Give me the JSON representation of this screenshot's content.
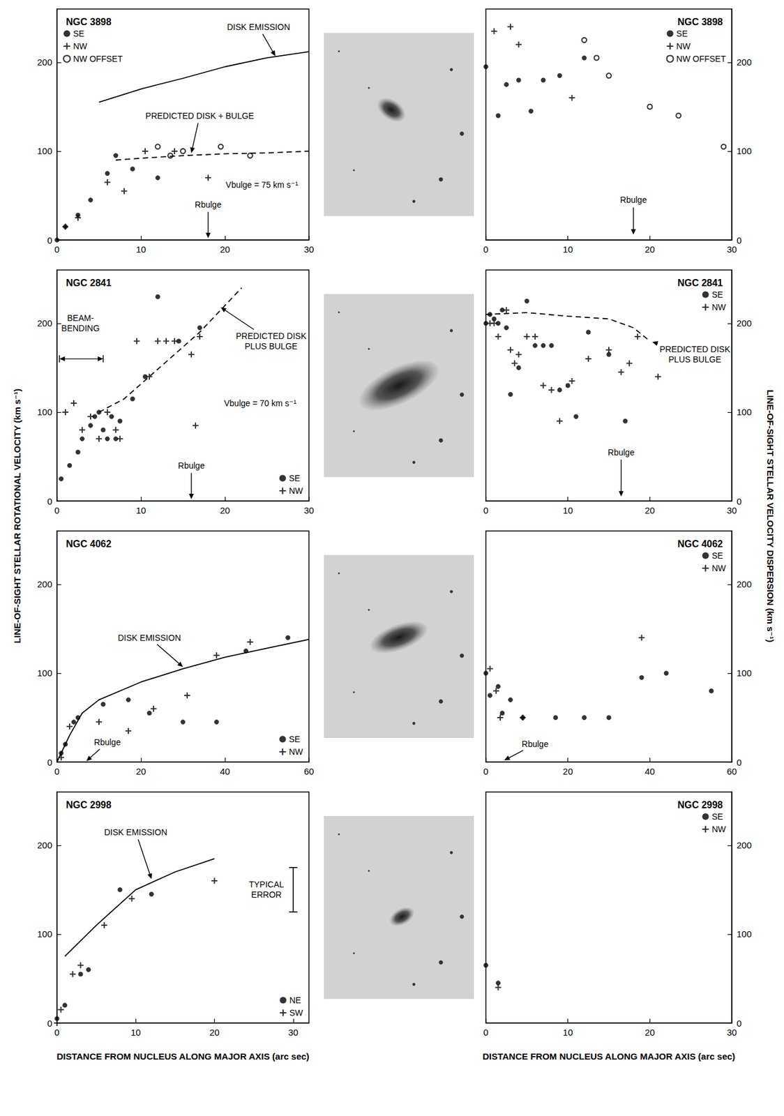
{
  "chart_data": [
    {
      "type": "scatter",
      "title": "NGC 3898",
      "xlim": [
        0,
        30
      ],
      "xticks": [
        0,
        10,
        20,
        30
      ],
      "ylim": [
        0,
        260
      ],
      "yticks": [
        0,
        100,
        200
      ],
      "grid": false,
      "legend": "upper left",
      "series": [
        {
          "name": "SE",
          "type": "scatter",
          "marker": "circle",
          "color": "#000000",
          "x": [
            0,
            1,
            2.5,
            4,
            6,
            7,
            9,
            12
          ],
          "values": [
            0,
            15,
            28,
            45,
            75,
            95,
            80,
            70
          ]
        },
        {
          "name": "NW",
          "type": "scatter",
          "marker": "plus",
          "color": "#000000",
          "x": [
            1,
            2.5,
            6,
            8,
            10.5,
            14,
            18
          ],
          "values": [
            15,
            25,
            65,
            55,
            100,
            100,
            70
          ]
        },
        {
          "name": "NW OFFSET",
          "type": "scatter",
          "marker": "open_circle",
          "color": "#000000",
          "x": [
            12,
            13.5,
            15,
            19.5,
            23
          ],
          "values": [
            105,
            95,
            100,
            105,
            95
          ]
        },
        {
          "type": "line",
          "line_style": "solid",
          "color": "#000000",
          "x": [
            5,
            10,
            15,
            20,
            25,
            30
          ],
          "values": [
            155,
            170,
            182,
            195,
            205,
            212
          ]
        },
        {
          "type": "line",
          "line_style": "dashed",
          "color": "#000000",
          "x": [
            7,
            10,
            15,
            20,
            25,
            30
          ],
          "values": [
            90,
            92,
            95,
            97,
            98,
            100
          ]
        }
      ],
      "annotations": [
        {
          "text": "DISK EMISSION",
          "x": 24,
          "y": 240,
          "point": [
            26,
            207
          ]
        },
        {
          "text": "PREDICTED DISK + BULGE",
          "x": 17,
          "y": 140,
          "point": [
            16,
            98
          ]
        },
        {
          "text": "Vbulge = 75 km s⁻¹",
          "x": 24.4,
          "y": 62
        },
        {
          "text": "Rbulge",
          "x": 18,
          "y": 40,
          "point": [
            18,
            2
          ]
        }
      ]
    },
    {
      "type": "scatter",
      "title": "NGC 3898",
      "xlim": [
        0,
        30
      ],
      "xticks": [
        0,
        10,
        20,
        30
      ],
      "ylim": [
        0,
        260
      ],
      "yticks": [
        0,
        100,
        200
      ],
      "grid": false,
      "legend": "upper right",
      "series": [
        {
          "name": "SE",
          "type": "scatter",
          "marker": "circle",
          "color": "#000000",
          "x": [
            0,
            1.5,
            2.5,
            4,
            5.5,
            7,
            9,
            12
          ],
          "values": [
            195,
            140,
            175,
            180,
            145,
            180,
            185,
            205
          ]
        },
        {
          "name": "NW",
          "type": "scatter",
          "marker": "plus",
          "color": "#000000",
          "x": [
            1,
            3,
            4,
            10.5
          ],
          "values": [
            235,
            240,
            220,
            160
          ]
        },
        {
          "name": "NW OFFSET",
          "type": "scatter",
          "marker": "open_circle",
          "color": "#000000",
          "x": [
            12,
            13.5,
            15,
            20,
            23.5,
            29
          ],
          "values": [
            225,
            205,
            185,
            150,
            140,
            105
          ]
        }
      ],
      "annotations": [
        {
          "text": "Rbulge",
          "x": 18,
          "y": 45,
          "point": [
            18,
            6
          ]
        }
      ]
    },
    {
      "type": "scatter",
      "title": "NGC 2841",
      "xlim": [
        0,
        30
      ],
      "xticks": [
        0,
        10,
        20,
        30
      ],
      "ylim": [
        0,
        260
      ],
      "yticks": [
        0,
        100,
        200
      ],
      "grid": false,
      "legend": "lower right",
      "series": [
        {
          "name": "SE",
          "type": "scatter",
          "marker": "circle",
          "color": "#000000",
          "x": [
            0.5,
            1.5,
            2.5,
            3,
            4,
            4.5,
            5,
            5.5,
            6,
            6.5,
            7,
            7.5,
            9,
            10.5,
            12,
            14.5,
            17
          ],
          "values": [
            25,
            40,
            55,
            70,
            85,
            95,
            100,
            80,
            70,
            95,
            70,
            90,
            115,
            140,
            230,
            180,
            195
          ]
        },
        {
          "name": "NW",
          "type": "scatter",
          "marker": "plus",
          "color": "#000000",
          "x": [
            1,
            2,
            3,
            4,
            5,
            6,
            7,
            7.5,
            9.5,
            11,
            12,
            13,
            14,
            16,
            16.5,
            17
          ],
          "values": [
            100,
            110,
            80,
            95,
            70,
            100,
            80,
            70,
            180,
            140,
            180,
            180,
            180,
            165,
            85,
            185
          ]
        },
        {
          "type": "line",
          "line_style": "dashed",
          "color": "#000000",
          "x": [
            5,
            8,
            11,
            14,
            17,
            20,
            22
          ],
          "values": [
            100,
            115,
            140,
            165,
            190,
            220,
            240
          ]
        }
      ],
      "annotations": [
        {
          "text": "BEAM-\nBENDING",
          "x": 2.8,
          "y": 200,
          "span": {
            "from": 0.3,
            "to": 5.5,
            "y": 160
          }
        },
        {
          "text": "PREDICTED DISK\nPLUS BULGE",
          "x": 25.5,
          "y": 180,
          "point": [
            19.5,
            218
          ]
        },
        {
          "text": "Vbulge = 70 km s⁻¹",
          "x": 24.2,
          "y": 110
        },
        {
          "text": "Rbulge",
          "x": 16,
          "y": 40,
          "point": [
            16,
            2
          ]
        }
      ]
    },
    {
      "type": "scatter",
      "title": "NGC 2841",
      "xlim": [
        0,
        30
      ],
      "xticks": [
        0,
        10,
        20,
        30
      ],
      "ylim": [
        0,
        260
      ],
      "yticks": [
        0,
        100,
        200
      ],
      "grid": false,
      "legend": "upper right",
      "series": [
        {
          "name": "SE",
          "type": "scatter",
          "marker": "circle",
          "color": "#000000",
          "x": [
            0,
            0.5,
            1,
            1.5,
            2,
            2.5,
            3,
            4,
            5,
            6,
            7,
            8,
            9,
            10,
            11,
            12.5,
            15,
            17
          ],
          "values": [
            200,
            210,
            205,
            200,
            215,
            195,
            120,
            150,
            225,
            175,
            175,
            175,
            125,
            130,
            95,
            190,
            165,
            90
          ]
        },
        {
          "name": "NW",
          "type": "scatter",
          "marker": "plus",
          "color": "#000000",
          "x": [
            0.5,
            1,
            1.5,
            2.5,
            3,
            3.5,
            4,
            5,
            6,
            7,
            8,
            9,
            10.5,
            12.5,
            15,
            16.5,
            17.5,
            18.5,
            21
          ],
          "values": [
            200,
            200,
            185,
            215,
            170,
            155,
            165,
            185,
            185,
            130,
            125,
            90,
            135,
            160,
            170,
            145,
            155,
            185,
            140
          ]
        },
        {
          "type": "line",
          "line_style": "dashed",
          "color": "#000000",
          "x": [
            0,
            5,
            10,
            15,
            18,
            20
          ],
          "values": [
            210,
            212,
            208,
            205,
            195,
            180
          ]
        }
      ],
      "annotations": [
        {
          "text": "PREDICTED DISK\nPLUS BULGE",
          "x": 25.5,
          "y": 165,
          "point": [
            20.3,
            179
          ]
        },
        {
          "text": "Rbulge",
          "x": 16.5,
          "y": 55,
          "point": [
            16.5,
            5
          ]
        }
      ]
    },
    {
      "type": "scatter",
      "title": "NGC 4062",
      "xlim": [
        0,
        60
      ],
      "xticks": [
        0,
        20,
        40,
        60
      ],
      "ylim": [
        0,
        260
      ],
      "yticks": [
        0,
        100,
        200
      ],
      "grid": false,
      "legend": "lower right",
      "series": [
        {
          "name": "SE",
          "type": "scatter",
          "marker": "circle",
          "color": "#000000",
          "x": [
            1,
            2,
            4,
            5,
            11,
            17,
            22,
            30,
            38,
            45,
            55
          ],
          "values": [
            10,
            20,
            45,
            50,
            65,
            70,
            55,
            45,
            45,
            125,
            140
          ]
        },
        {
          "name": "NW",
          "type": "scatter",
          "marker": "plus",
          "color": "#000000",
          "x": [
            1,
            3,
            10,
            17,
            23,
            31,
            38,
            46
          ],
          "values": [
            5,
            40,
            45,
            35,
            60,
            75,
            120,
            135
          ]
        },
        {
          "type": "line",
          "line_style": "solid",
          "color": "#000000",
          "x": [
            0,
            3,
            6,
            10,
            20,
            30,
            40,
            50,
            60
          ],
          "values": [
            0,
            30,
            55,
            70,
            90,
            105,
            118,
            128,
            138
          ]
        }
      ],
      "annotations": [
        {
          "text": "DISK EMISSION",
          "x": 22,
          "y": 140,
          "point": [
            30,
            107
          ]
        },
        {
          "text": "Rbulge",
          "x": 12,
          "y": 22,
          "point": [
            7,
            1
          ]
        }
      ]
    },
    {
      "type": "scatter",
      "title": "NGC 4062",
      "xlim": [
        0,
        60
      ],
      "xticks": [
        0,
        20,
        40,
        60
      ],
      "ylim": [
        0,
        260
      ],
      "yticks": [
        0,
        100,
        200
      ],
      "grid": false,
      "legend": "upper right",
      "series": [
        {
          "name": "SE",
          "type": "scatter",
          "marker": "circle",
          "color": "#000000",
          "x": [
            0,
            1,
            3,
            4,
            6,
            9,
            17,
            24,
            30,
            38,
            44,
            55
          ],
          "values": [
            100,
            75,
            85,
            55,
            70,
            50,
            50,
            50,
            50,
            95,
            100,
            80
          ]
        },
        {
          "name": "NW",
          "type": "scatter",
          "marker": "plus",
          "color": "#000000",
          "x": [
            1,
            2.5,
            3.5,
            9,
            38
          ],
          "values": [
            105,
            80,
            50,
            50,
            140
          ]
        }
      ],
      "annotations": [
        {
          "text": "Rbulge",
          "x": 12,
          "y": 20,
          "point": [
            4.5,
            2
          ]
        }
      ]
    },
    {
      "type": "scatter",
      "title": "NGC 2998",
      "xlim": [
        0,
        32
      ],
      "xticks": [
        0,
        10,
        20,
        30
      ],
      "ylim": [
        0,
        260
      ],
      "yticks": [
        0,
        100,
        200
      ],
      "grid": false,
      "legend": "lower right",
      "series": [
        {
          "name": "NE",
          "type": "scatter",
          "marker": "circle",
          "color": "#000000",
          "x": [
            0,
            1,
            3,
            4,
            8,
            12
          ],
          "values": [
            5,
            20,
            55,
            60,
            150,
            145
          ]
        },
        {
          "name": "SW",
          "type": "scatter",
          "marker": "plus",
          "color": "#000000",
          "x": [
            0,
            0.5,
            2,
            3,
            6,
            9.5,
            20
          ],
          "values": [
            0,
            15,
            55,
            65,
            110,
            140,
            160
          ]
        },
        {
          "type": "line",
          "line_style": "solid",
          "color": "#000000",
          "x": [
            1,
            5,
            10,
            15,
            20
          ],
          "values": [
            75,
            110,
            150,
            170,
            185
          ]
        },
        {
          "type": "errorbar",
          "color": "#000000",
          "x": [
            30
          ],
          "values": [
            150
          ],
          "error": [
            25
          ]
        }
      ],
      "annotations": [
        {
          "text": "DISK EMISSION",
          "x": 10,
          "y": 215,
          "point": [
            12,
            162
          ]
        },
        {
          "text": "TYPICAL\nERROR",
          "x": 26.6,
          "y": 150
        }
      ]
    },
    {
      "type": "scatter",
      "title": "NGC 2998",
      "xlim": [
        0,
        30
      ],
      "xticks": [
        0,
        10,
        20,
        30
      ],
      "ylim": [
        0,
        260
      ],
      "yticks": [
        0,
        100,
        200
      ],
      "grid": false,
      "legend": "upper right",
      "series": [
        {
          "name": "SE",
          "type": "scatter",
          "marker": "circle",
          "color": "#000000",
          "x": [
            0,
            1.5
          ],
          "values": [
            65,
            45
          ]
        },
        {
          "name": "NW",
          "type": "scatter",
          "marker": "plus",
          "color": "#000000",
          "x": [
            1.5
          ],
          "values": [
            40
          ]
        }
      ],
      "annotations": []
    }
  ],
  "xlabel": "DISTANCE FROM NUCLEUS ALONG MAJOR AXIS (arc sec)",
  "ylabels": [
    "LINE-OF-SIGHT STELLAR ROTATIONAL VELOCITY (km s⁻¹)",
    "LINE-OF-SIGHT STELLAR VELOCITY DISPERSION (km s⁻¹)"
  ]
}
